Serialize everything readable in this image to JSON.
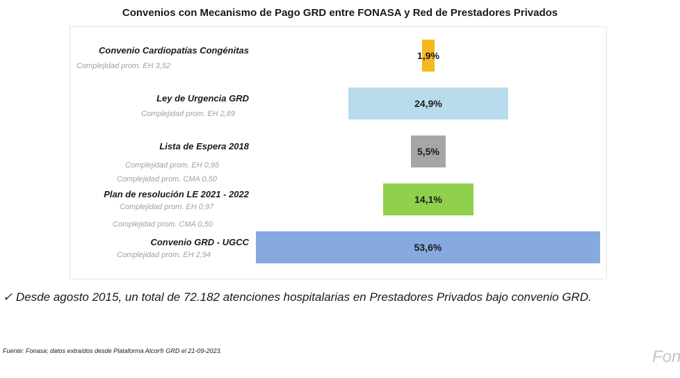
{
  "title": "Convenios con Mecanismo de Pago GRD entre FONASA y Red de Prestadores Privados",
  "chart_data": {
    "type": "bar",
    "title": "Convenios con Mecanismo de Pago GRD entre FONASA y Red de Prestadores Privados",
    "categories": [
      "Convenio Cardiopatías Congénitas",
      "Ley de Urgencia GRD",
      "Lista de Espera 2018",
      "Plan de resolución LE 2021 - 2022",
      "Convenio GRD - UGCC"
    ],
    "values": [
      1.9,
      24.9,
      5.5,
      14.1,
      53.6
    ],
    "value_labels": [
      "1,9%",
      "24,9%",
      "5,5%",
      "14,1%",
      "53,6%"
    ],
    "subtitles": [
      [
        "Complejidad prom. EH 3,52"
      ],
      [
        "Complejidad prom. EH 2,89"
      ],
      [
        "Complejidad prom. EH 0,95",
        "Complejidad prom. CMA 0,50"
      ],
      [
        "Complejidad prom. EH 0,97",
        "Complejidad prom. CMA 0,50"
      ],
      [
        "Complejidad prom. EH 2,94"
      ]
    ],
    "colors": [
      "#f5b820",
      "#b9dced",
      "#a6a6a6",
      "#8fd14f",
      "#86a9df"
    ],
    "grid": false,
    "legend": "none"
  },
  "note": "✓ Desde agosto 2015, un total de 72.182 atenciones hospitalarias en Prestadores Privados bajo convenio GRD.",
  "source": "Fuente: Fonasa; datos extraídos desde Plataforma Alcor® GRD el 21-09-2023.",
  "logo": "Fonasa"
}
